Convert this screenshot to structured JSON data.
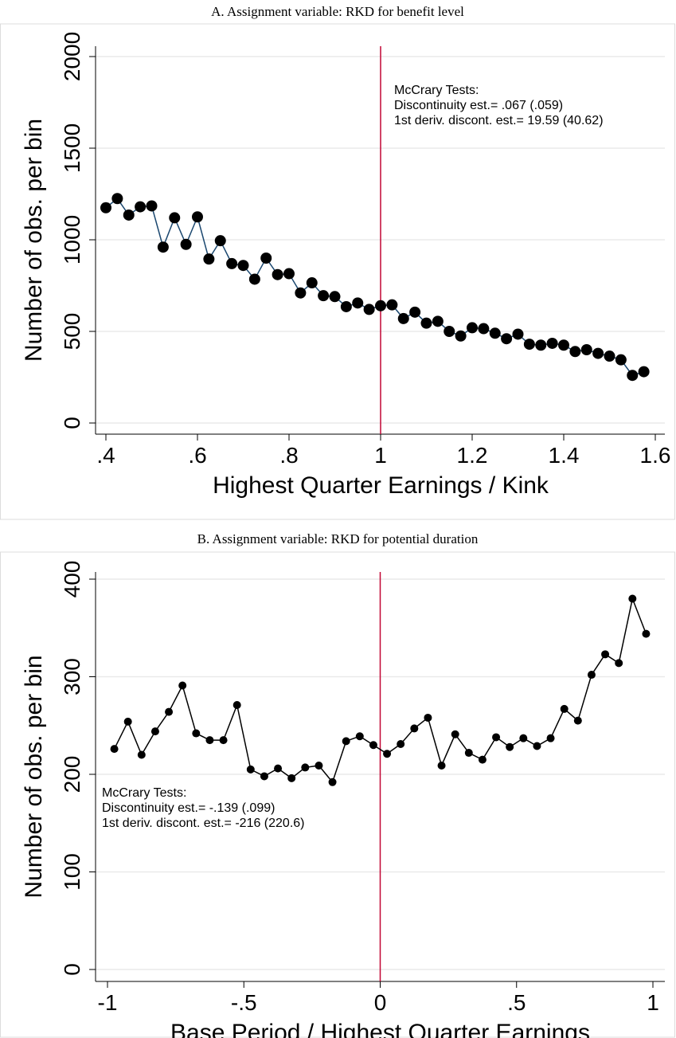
{
  "chart_data": [
    {
      "type": "line",
      "title": "A. Assignment variable: RKD for benefit level",
      "x_label": "Highest Quarter Earnings / Kink",
      "y_label": "Number of obs. per bin",
      "x": [
        0.4,
        0.425,
        0.45,
        0.475,
        0.5,
        0.525,
        0.55,
        0.575,
        0.6,
        0.625,
        0.65,
        0.675,
        0.7,
        0.725,
        0.75,
        0.775,
        0.8,
        0.825,
        0.85,
        0.875,
        0.9,
        0.925,
        0.95,
        0.975,
        1.0,
        1.025,
        1.05,
        1.075,
        1.1,
        1.125,
        1.15,
        1.175,
        1.2,
        1.225,
        1.25,
        1.275,
        1.3,
        1.325,
        1.35,
        1.375,
        1.4,
        1.425,
        1.45,
        1.475,
        1.5,
        1.525,
        1.55,
        1.575
      ],
      "values": [
        1175,
        1225,
        1135,
        1180,
        1185,
        960,
        1120,
        975,
        1125,
        895,
        995,
        870,
        860,
        785,
        900,
        810,
        815,
        710,
        765,
        695,
        690,
        635,
        655,
        620,
        640,
        645,
        570,
        605,
        545,
        555,
        500,
        475,
        520,
        515,
        490,
        460,
        485,
        430,
        425,
        435,
        425,
        390,
        400,
        380,
        365,
        345,
        260,
        280
      ],
      "line_color": "#1a476f",
      "marker_color": "#000000",
      "vline": 1,
      "vline_color": "#c10534",
      "annotation": [
        "McCrary Tests:",
        "Discontinuity est.= .067 (.059)",
        "1st deriv. discont. est.= 19.59 (40.62)"
      ],
      "xlim": [
        0.4,
        1.6
      ],
      "xticks": [
        {
          "value": 0.4,
          "label": ".4"
        },
        {
          "value": 0.6,
          "label": ".6"
        },
        {
          "value": 0.8,
          "label": ".8"
        },
        1,
        1.2,
        1.4,
        1.6
      ],
      "ylim": [
        0,
        2000
      ],
      "yticks": [
        0,
        500,
        1000,
        1500,
        2000
      ],
      "grid": true
    },
    {
      "type": "line",
      "title": "B. Assignment variable: RKD for potential duration",
      "x_label": "Base Period / Highest Quarter Earnings",
      "y_label": "Number of obs. per bin",
      "x": [
        -0.975,
        -0.925,
        -0.875,
        -0.825,
        -0.775,
        -0.725,
        -0.675,
        -0.625,
        -0.575,
        -0.525,
        -0.475,
        -0.425,
        -0.375,
        -0.325,
        -0.275,
        -0.225,
        -0.175,
        -0.125,
        -0.075,
        -0.025,
        0.025,
        0.075,
        0.125,
        0.175,
        0.225,
        0.275,
        0.325,
        0.375,
        0.425,
        0.475,
        0.525,
        0.575,
        0.625,
        0.675,
        0.725,
        0.775,
        0.825,
        0.875,
        0.925,
        0.975
      ],
      "values": [
        226,
        254,
        220,
        244,
        264,
        291,
        242,
        235,
        235,
        271,
        205,
        198,
        206,
        196,
        207,
        209,
        192,
        234,
        239,
        230,
        221,
        231,
        247,
        258,
        209,
        241,
        222,
        215,
        238,
        228,
        237,
        229,
        237,
        267,
        255,
        302,
        323,
        314,
        380,
        344
      ],
      "line_color": "#000000",
      "marker_color": "#000000",
      "vline": 0,
      "vline_color": "#c10534",
      "annotation": [
        "McCrary Tests:",
        "Discontinuity est.= -.139 (.099)",
        "1st deriv. discont. est.= -216 (220.6)"
      ],
      "xlim": [
        -1,
        1
      ],
      "xticks": [
        -1,
        {
          "value": -0.5,
          "label": "-.5"
        },
        0,
        {
          "value": 0.5,
          "label": ".5"
        },
        1
      ],
      "ylim": [
        0,
        400
      ],
      "yticks": [
        0,
        100,
        200,
        300,
        400
      ],
      "grid": true
    }
  ]
}
